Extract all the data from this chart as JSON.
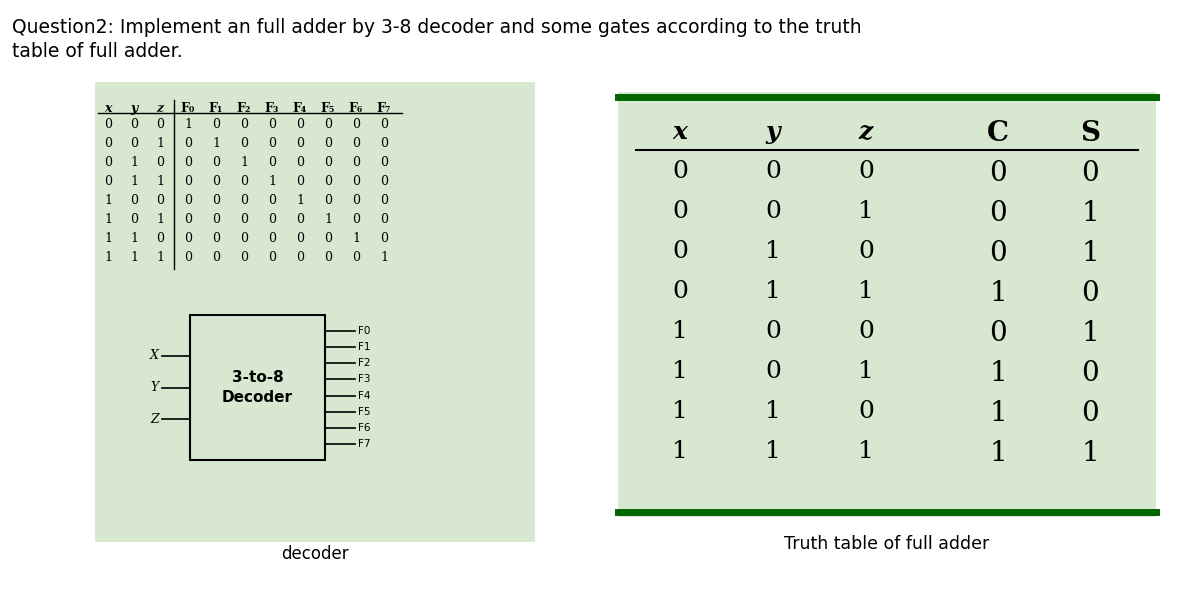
{
  "title_line1": "Question2: Implement an full adder by 3-8 decoder and some gates according to the truth",
  "title_line2": "table of full adder.",
  "bg_color": "#d8e8d0",
  "green_border": "#006600",
  "decoder_table": {
    "headers": [
      "x",
      "y",
      "z",
      "F0",
      "F1",
      "F2",
      "F3",
      "F4",
      "F5",
      "F6",
      "F7"
    ],
    "rows": [
      [
        0,
        0,
        0,
        1,
        0,
        0,
        0,
        0,
        0,
        0,
        0
      ],
      [
        0,
        0,
        1,
        0,
        1,
        0,
        0,
        0,
        0,
        0,
        0
      ],
      [
        0,
        1,
        0,
        0,
        0,
        1,
        0,
        0,
        0,
        0,
        0
      ],
      [
        0,
        1,
        1,
        0,
        0,
        0,
        1,
        0,
        0,
        0,
        0
      ],
      [
        1,
        0,
        0,
        0,
        0,
        0,
        0,
        1,
        0,
        0,
        0
      ],
      [
        1,
        0,
        1,
        0,
        0,
        0,
        0,
        0,
        1,
        0,
        0
      ],
      [
        1,
        1,
        0,
        0,
        0,
        0,
        0,
        0,
        0,
        1,
        0
      ],
      [
        1,
        1,
        1,
        0,
        0,
        0,
        0,
        0,
        0,
        0,
        1
      ]
    ]
  },
  "truth_table": {
    "headers": [
      "x",
      "y",
      "z",
      "C",
      "S"
    ],
    "rows": [
      [
        0,
        0,
        0,
        0,
        0
      ],
      [
        0,
        0,
        1,
        0,
        1
      ],
      [
        0,
        1,
        0,
        0,
        1
      ],
      [
        0,
        1,
        1,
        1,
        0
      ],
      [
        1,
        0,
        0,
        0,
        1
      ],
      [
        1,
        0,
        1,
        1,
        0
      ],
      [
        1,
        1,
        0,
        1,
        0
      ],
      [
        1,
        1,
        1,
        1,
        1
      ]
    ]
  },
  "decoder_label": "decoder",
  "truth_table_label": "Truth table of full adder",
  "decoder_box": {
    "label_line1": "3-to-8",
    "label_line2": "Decoder",
    "inputs": [
      "X",
      "Y",
      "Z"
    ],
    "outputs": [
      "F0",
      "F1",
      "F2",
      "F3",
      "F4",
      "F5",
      "F6",
      "F7"
    ]
  },
  "sub_map": {
    "F0": "F₀",
    "F1": "F₁",
    "F2": "F₂",
    "F3": "F₃",
    "F4": "F₄",
    "F5": "F₅",
    "F6": "F₆",
    "F7": "F₇"
  }
}
